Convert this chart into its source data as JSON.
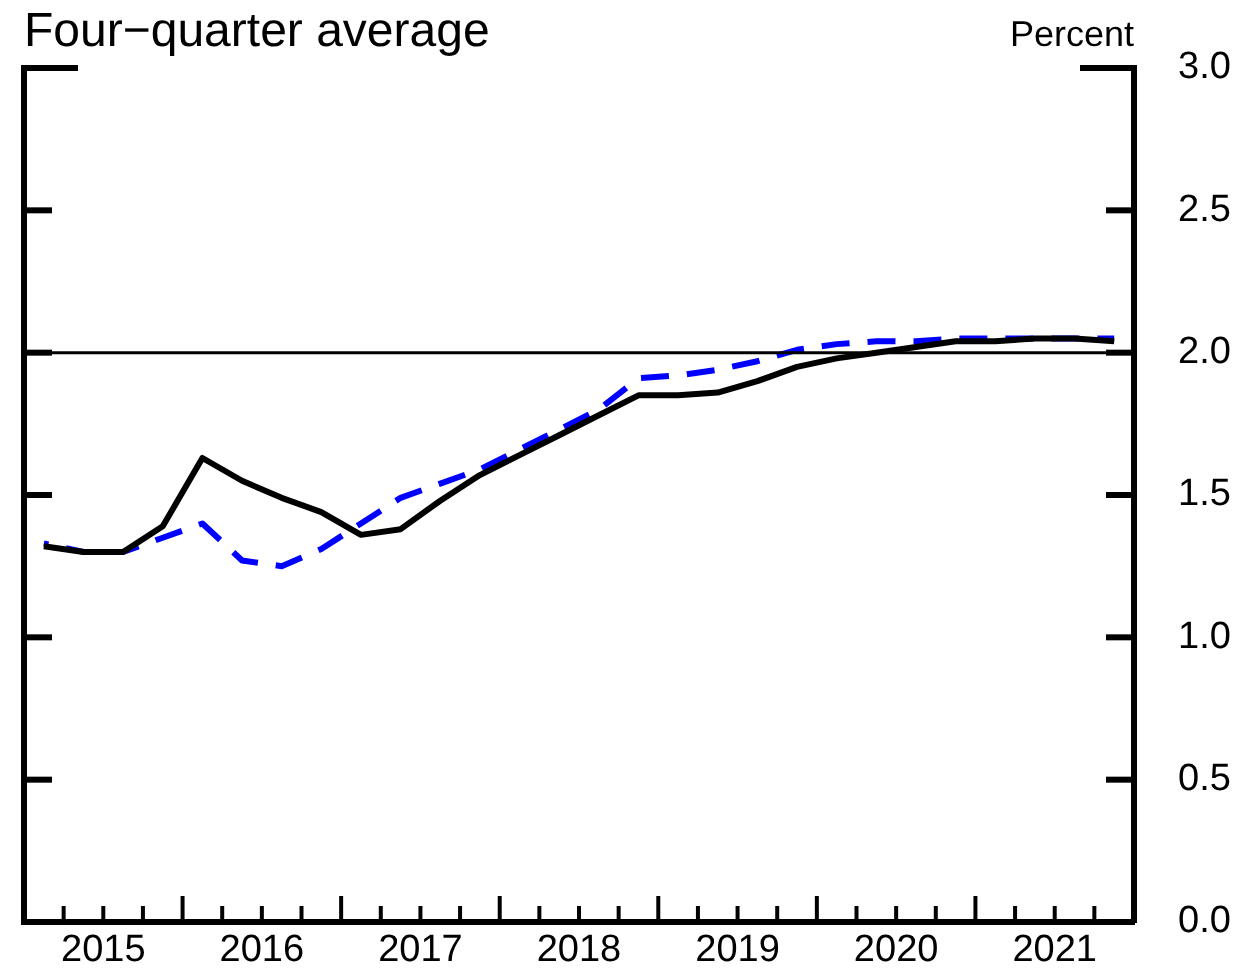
{
  "chart_data": {
    "type": "line",
    "title": "Four−quarter average",
    "ylabel": "Percent",
    "x": [
      2015.125,
      2015.375,
      2015.625,
      2015.875,
      2016.125,
      2016.375,
      2016.625,
      2016.875,
      2017.125,
      2017.375,
      2017.625,
      2017.875,
      2018.125,
      2018.375,
      2018.625,
      2018.875,
      2019.125,
      2019.375,
      2019.625,
      2019.875,
      2020.125,
      2020.375,
      2020.625,
      2020.875,
      2021.125,
      2021.375,
      2021.625,
      2021.875
    ],
    "series": [
      {
        "color": "#000000",
        "line_style": "solid",
        "values": [
          1.32,
          1.3,
          1.3,
          1.39,
          1.63,
          1.55,
          1.49,
          1.44,
          1.36,
          1.38,
          1.48,
          1.57,
          1.64,
          1.71,
          1.78,
          1.85,
          1.85,
          1.86,
          1.9,
          1.95,
          1.98,
          2.0,
          2.02,
          2.04,
          2.04,
          2.05,
          2.05,
          2.04
        ]
      },
      {
        "color": "#0000ff",
        "line_style": "dashed",
        "values": [
          1.33,
          1.3,
          1.3,
          1.35,
          1.4,
          1.27,
          1.25,
          1.31,
          1.4,
          1.49,
          1.54,
          1.59,
          1.66,
          1.73,
          1.8,
          1.91,
          1.92,
          1.94,
          1.97,
          2.01,
          2.03,
          2.04,
          2.04,
          2.05,
          2.05,
          2.05,
          2.05,
          2.05
        ]
      }
    ],
    "xlim": [
      2015,
      2022
    ],
    "xticks": [
      {
        "value": 2015,
        "label": null
      },
      {
        "value": 2015.25,
        "label": null
      },
      {
        "value": 2015.5,
        "label": "2015"
      },
      {
        "value": 2015.75,
        "label": null
      },
      {
        "value": 2016,
        "label": null
      },
      {
        "value": 2016.25,
        "label": null
      },
      {
        "value": 2016.5,
        "label": "2016"
      },
      {
        "value": 2016.75,
        "label": null
      },
      {
        "value": 2017,
        "label": null
      },
      {
        "value": 2017.25,
        "label": null
      },
      {
        "value": 2017.5,
        "label": "2017"
      },
      {
        "value": 2017.75,
        "label": null
      },
      {
        "value": 2018,
        "label": null
      },
      {
        "value": 2018.25,
        "label": null
      },
      {
        "value": 2018.5,
        "label": "2018"
      },
      {
        "value": 2018.75,
        "label": null
      },
      {
        "value": 2019,
        "label": null
      },
      {
        "value": 2019.25,
        "label": null
      },
      {
        "value": 2019.5,
        "label": "2019"
      },
      {
        "value": 2019.75,
        "label": null
      },
      {
        "value": 2020,
        "label": null
      },
      {
        "value": 2020.25,
        "label": null
      },
      {
        "value": 2020.5,
        "label": "2020"
      },
      {
        "value": 2020.75,
        "label": null
      },
      {
        "value": 2021,
        "label": null
      },
      {
        "value": 2021.25,
        "label": null
      },
      {
        "value": 2021.5,
        "label": "2021"
      },
      {
        "value": 2021.75,
        "label": null
      },
      {
        "value": 2022,
        "label": null
      }
    ],
    "ylim": [
      0,
      3
    ],
    "yticks": [
      {
        "value": 0,
        "label": "0.0"
      },
      0.5,
      {
        "value": 1,
        "label": "1.0"
      },
      1.5,
      {
        "value": 2,
        "label": "2.0"
      },
      2.5,
      {
        "value": 3,
        "label": "3.0"
      }
    ],
    "ref_lines": [
      {
        "axis": "y",
        "value": 2,
        "color": "#000000"
      }
    ]
  }
}
